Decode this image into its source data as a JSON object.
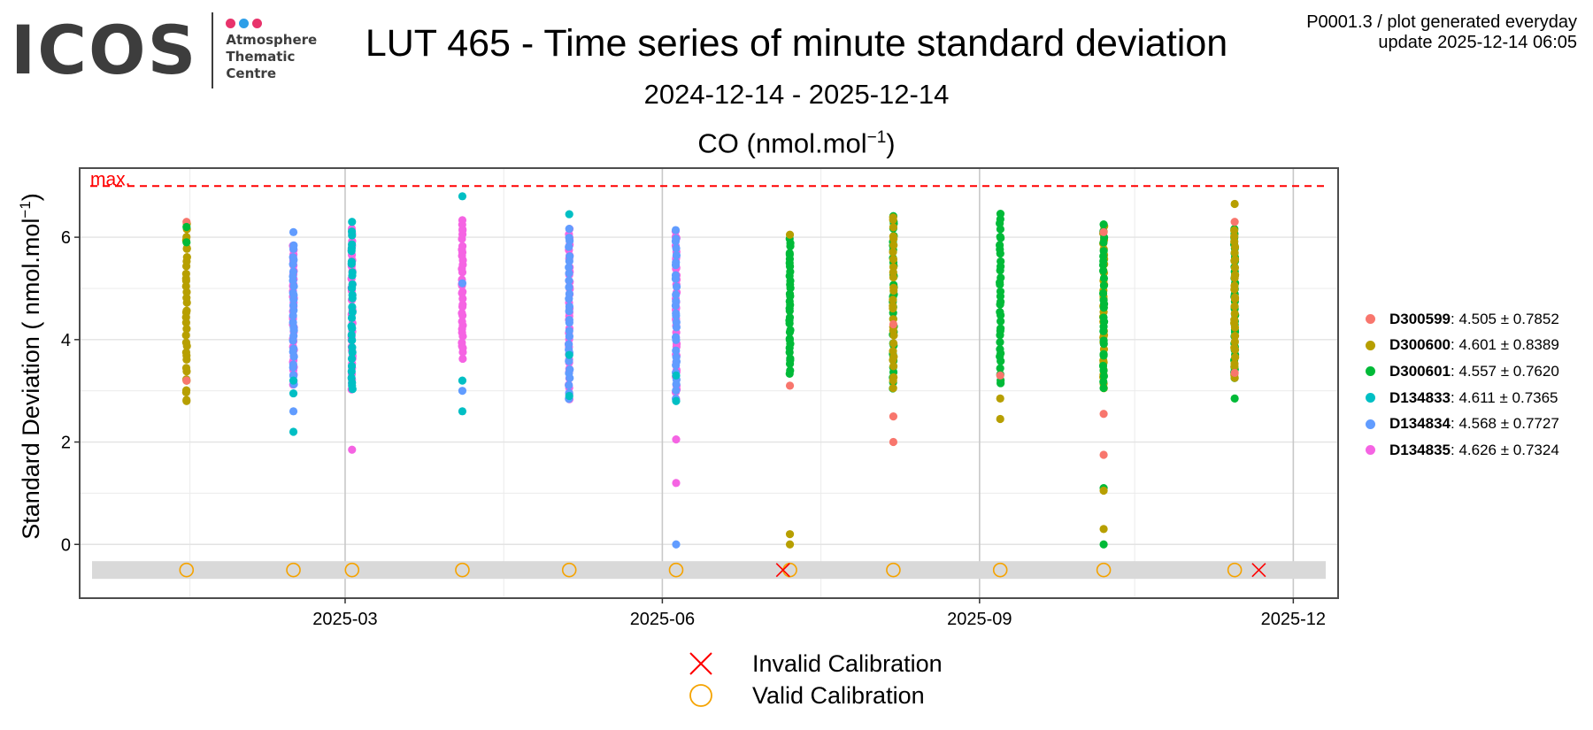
{
  "logo": {
    "word": "ICOS",
    "line1": "Atmosphere",
    "line2": "Thematic",
    "line3": "Centre",
    "dot_colors": [
      "#e8336b",
      "#2e9fe8",
      "#e8336b"
    ]
  },
  "header": {
    "title": "LUT 465 - Time series of minute standard deviation",
    "date_range": "2024-12-14 - 2025-12-14",
    "species_prefix": "CO (nmol.mol",
    "species_sup": "−1",
    "species_suffix": ")",
    "plot_code": "P0001.3 / plot generated everyday",
    "update": "update  2025-12-14 06:05"
  },
  "chart_data": {
    "type": "scatter",
    "title": "LUT 465 - Time series of minute standard deviation",
    "subtitle": "2024-12-14 - 2025-12-14",
    "ylabel_prefix": "Standard Deviation ( nmol.mol",
    "ylabel_sup": "−1",
    "ylabel_suffix": ")",
    "x_range": [
      "2024-12-14",
      "2025-12-14"
    ],
    "ylim": [
      -1.05,
      7.35
    ],
    "y_ticks": [
      0,
      2,
      4,
      6
    ],
    "x_ticks": [
      {
        "date": "2025-03-01",
        "label": "2025-03"
      },
      {
        "date": "2025-06-01",
        "label": "2025-06"
      },
      {
        "date": "2025-09-01",
        "label": "2025-09"
      },
      {
        "date": "2025-12-01",
        "label": "2025-12"
      }
    ],
    "max_line": {
      "value": 7.0,
      "label": "max.",
      "color": "#ff0000"
    },
    "grid": true,
    "legend_position": "right",
    "series": [
      {
        "name": "D300599",
        "color": "#f8766d",
        "mean": "4.505",
        "sd": "0.7852"
      },
      {
        "name": "D300600",
        "color": "#b79f00",
        "mean": "4.601",
        "sd": "0.8389"
      },
      {
        "name": "D300601",
        "color": "#00ba38",
        "mean": "4.557",
        "sd": "0.7620"
      },
      {
        "name": "D134833",
        "color": "#00bfc4",
        "mean": "4.611",
        "sd": "0.7365"
      },
      {
        "name": "D134834",
        "color": "#619cff",
        "mean": "4.568",
        "sd": "0.7727"
      },
      {
        "name": "D134835",
        "color": "#f564e3",
        "mean": "4.626",
        "sd": "0.7324"
      }
    ],
    "clusters": [
      {
        "date": "2025-01-14",
        "main": [
          1
        ],
        "low": 2.8,
        "high": 6.3,
        "extras": [
          {
            "s": 0,
            "y": 6.3
          },
          {
            "s": 0,
            "y": 3.2
          },
          {
            "s": 2,
            "y": 6.2
          },
          {
            "s": 2,
            "y": 5.9
          },
          {
            "s": 1,
            "y": 2.8
          }
        ]
      },
      {
        "date": "2025-02-14",
        "main": [
          5,
          4
        ],
        "low": 3.1,
        "high": 5.9,
        "extras": [
          {
            "s": 4,
            "y": 6.1
          },
          {
            "s": 4,
            "y": 2.6
          },
          {
            "s": 3,
            "y": 2.95
          },
          {
            "s": 3,
            "y": 2.2
          },
          {
            "s": 3,
            "y": 3.2
          }
        ]
      },
      {
        "date": "2025-03-03",
        "main": [
          5,
          3
        ],
        "low": 3.0,
        "high": 6.2,
        "extras": [
          {
            "s": 3,
            "y": 6.3
          },
          {
            "s": 5,
            "y": 1.85
          },
          {
            "s": 3,
            "y": 3.1
          }
        ]
      },
      {
        "date": "2025-04-04",
        "main": [
          5
        ],
        "low": 3.6,
        "high": 6.4,
        "extras": [
          {
            "s": 3,
            "y": 6.8
          },
          {
            "s": 3,
            "y": 2.6
          },
          {
            "s": 4,
            "y": 3.0
          },
          {
            "s": 3,
            "y": 3.2
          },
          {
            "s": 4,
            "y": 5.1
          }
        ]
      },
      {
        "date": "2025-05-05",
        "main": [
          5,
          4
        ],
        "low": 2.8,
        "high": 6.2,
        "extras": [
          {
            "s": 3,
            "y": 6.45
          },
          {
            "s": 3,
            "y": 2.9
          },
          {
            "s": 3,
            "y": 3.7
          }
        ]
      },
      {
        "date": "2025-06-05",
        "main": [
          5,
          4
        ],
        "low": 2.8,
        "high": 6.2,
        "extras": [
          {
            "s": 5,
            "y": 2.05
          },
          {
            "s": 5,
            "y": 1.2
          },
          {
            "s": 4,
            "y": 0.0
          },
          {
            "s": 3,
            "y": 2.8
          },
          {
            "s": 3,
            "y": 3.3
          }
        ]
      },
      {
        "date": "2025-07-08",
        "main": [
          2
        ],
        "low": 3.3,
        "high": 6.0,
        "extras": [
          {
            "s": 0,
            "y": 3.1
          },
          {
            "s": 1,
            "y": 6.05
          },
          {
            "s": 1,
            "y": 0.2
          },
          {
            "s": 1,
            "y": 0.0
          }
        ]
      },
      {
        "date": "2025-08-07",
        "main": [
          2,
          1
        ],
        "low": 3.0,
        "high": 6.5,
        "extras": [
          {
            "s": 0,
            "y": 2.5
          },
          {
            "s": 0,
            "y": 2.0
          },
          {
            "s": 0,
            "y": 4.3
          }
        ]
      },
      {
        "date": "2025-09-07",
        "main": [
          2
        ],
        "low": 3.1,
        "high": 6.5,
        "extras": [
          {
            "s": 1,
            "y": 2.85
          },
          {
            "s": 1,
            "y": 2.45
          },
          {
            "s": 0,
            "y": 3.3
          }
        ]
      },
      {
        "date": "2025-10-07",
        "main": [
          1,
          2
        ],
        "low": 3.0,
        "high": 6.3,
        "extras": [
          {
            "s": 0,
            "y": 6.1
          },
          {
            "s": 0,
            "y": 2.55
          },
          {
            "s": 0,
            "y": 1.75
          },
          {
            "s": 2,
            "y": 1.1
          },
          {
            "s": 1,
            "y": 1.05
          },
          {
            "s": 1,
            "y": 0.3
          },
          {
            "s": 2,
            "y": 0.0
          }
        ]
      },
      {
        "date": "2025-11-14",
        "main": [
          2,
          1
        ],
        "low": 3.2,
        "high": 6.2,
        "extras": [
          {
            "s": 1,
            "y": 6.65
          },
          {
            "s": 0,
            "y": 6.3
          },
          {
            "s": 2,
            "y": 2.85
          },
          {
            "s": 0,
            "y": 3.35
          }
        ]
      }
    ],
    "calibrations": {
      "band_y": -0.5,
      "valid_dates": [
        "2025-01-14",
        "2025-02-14",
        "2025-03-03",
        "2025-04-04",
        "2025-05-05",
        "2025-06-05",
        "2025-07-08",
        "2025-08-07",
        "2025-09-07",
        "2025-10-07",
        "2025-11-14"
      ],
      "invalid_dates": [
        "2025-07-06",
        "2025-11-21"
      ],
      "valid_color": "#f5a300",
      "invalid_color": "#ff0000",
      "band_color": "#d9d9d9"
    }
  },
  "calib_legend": {
    "invalid_label": "Invalid Calibration",
    "valid_label": "Valid Calibration"
  }
}
